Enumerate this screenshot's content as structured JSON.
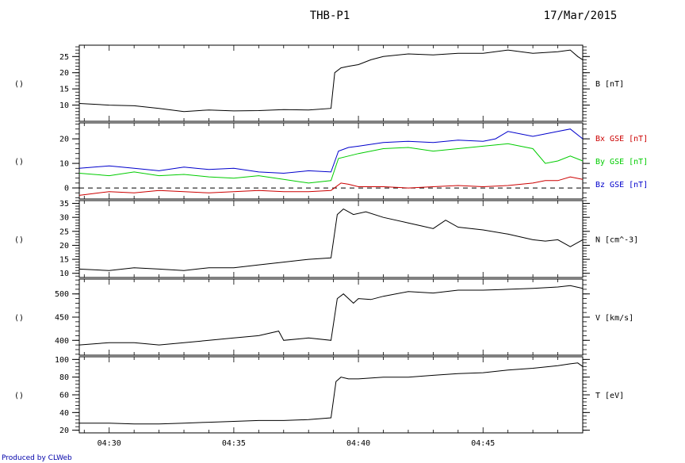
{
  "header": {
    "title": "THB-P1",
    "date": "17/Mar/2015"
  },
  "footer": {
    "credit": "Produced by CLWeb"
  },
  "colors": {
    "bx": "#cc0000",
    "by": "#00cc00",
    "bz": "#0000cc",
    "black": "#000000"
  },
  "chart_data": {
    "type": "line",
    "x_ticks": [
      "04:30",
      "04:35",
      "04:40",
      "04:45"
    ],
    "x_tick_minutes": [
      30,
      35,
      40,
      45
    ],
    "x_range_minutes": [
      28.8,
      49.0
    ],
    "panels": [
      {
        "id": "b",
        "left_label": "()",
        "ylim": [
          5,
          28.5
        ],
        "yticks": [
          10,
          15,
          20,
          25
        ],
        "series": [
          {
            "name": "B [nT]",
            "color": "#000000",
            "x": [
              28.8,
              30.0,
              31.0,
              32.0,
              33.0,
              34.0,
              35.0,
              36.0,
              37.0,
              38.0,
              38.9,
              39.05,
              39.3,
              39.6,
              40.0,
              40.5,
              41.0,
              42.0,
              43.0,
              44.0,
              45.0,
              46.0,
              47.0,
              48.0,
              48.5,
              48.8,
              49.0
            ],
            "values": [
              10.5,
              10.0,
              9.8,
              9.0,
              8.0,
              8.5,
              8.2,
              8.3,
              8.6,
              8.5,
              9.0,
              20.0,
              21.5,
              22.0,
              22.5,
              24.0,
              25.0,
              25.8,
              25.5,
              26.0,
              26.0,
              27.0,
              26.0,
              26.5,
              27.0,
              25.0,
              24.0
            ]
          }
        ]
      },
      {
        "id": "bgse",
        "left_label": "()",
        "ylim": [
          -4.5,
          26.5
        ],
        "yticks": [
          0,
          10,
          20
        ],
        "dashed_zero": true,
        "series": [
          {
            "name": "Bx GSE [nT]",
            "color": "#cc0000",
            "x": [
              28.8,
              30.0,
              31.0,
              32.0,
              33.0,
              34.0,
              35.0,
              36.0,
              37.0,
              38.0,
              38.9,
              39.3,
              39.6,
              40.0,
              41.0,
              42.0,
              43.0,
              44.0,
              45.0,
              46.0,
              47.0,
              47.5,
              48.0,
              48.5,
              49.0
            ],
            "values": [
              -3.0,
              -1.5,
              -2.0,
              -1.0,
              -1.5,
              -2.0,
              -1.5,
              -1.0,
              -1.5,
              -1.5,
              -1.0,
              2.0,
              1.5,
              0.5,
              0.5,
              0.0,
              0.5,
              1.0,
              0.5,
              1.0,
              2.0,
              3.0,
              3.0,
              4.5,
              3.5
            ]
          },
          {
            "name": "By GSE [nT]",
            "color": "#00cc00",
            "x": [
              28.8,
              30.0,
              31.0,
              32.0,
              33.0,
              34.0,
              35.0,
              36.0,
              37.0,
              38.0,
              38.9,
              39.2,
              39.6,
              40.0,
              41.0,
              42.0,
              43.0,
              44.0,
              45.0,
              46.0,
              46.5,
              47.0,
              47.5,
              48.0,
              48.5,
              49.0
            ],
            "values": [
              6.0,
              5.0,
              6.5,
              5.0,
              5.5,
              4.5,
              4.0,
              5.0,
              3.5,
              2.0,
              3.0,
              12.0,
              13.0,
              14.0,
              16.0,
              16.5,
              15.0,
              16.0,
              17.0,
              18.0,
              17.0,
              16.0,
              10.0,
              11.0,
              13.0,
              11.0
            ]
          },
          {
            "name": "Bz GSE [nT]",
            "color": "#0000cc",
            "x": [
              28.8,
              30.0,
              31.0,
              32.0,
              33.0,
              34.0,
              35.0,
              36.0,
              37.0,
              38.0,
              38.9,
              39.2,
              39.6,
              40.0,
              41.0,
              42.0,
              43.0,
              44.0,
              45.0,
              45.5,
              46.0,
              47.0,
              48.0,
              48.5,
              49.0
            ],
            "values": [
              8.0,
              9.0,
              8.0,
              7.0,
              8.5,
              7.5,
              8.0,
              6.5,
              6.0,
              7.0,
              6.5,
              15.0,
              16.5,
              17.0,
              18.5,
              19.0,
              18.5,
              19.5,
              19.0,
              20.0,
              23.0,
              21.0,
              23.0,
              24.0,
              20.0
            ]
          }
        ]
      },
      {
        "id": "n",
        "left_label": "()",
        "ylim": [
          8.5,
          36
        ],
        "yticks": [
          10,
          15,
          20,
          25,
          30,
          35
        ],
        "series": [
          {
            "name": "N [cm^-3]",
            "color": "#000000",
            "x": [
              28.8,
              30.0,
              31.0,
              32.0,
              33.0,
              34.0,
              35.0,
              36.0,
              37.0,
              38.0,
              38.9,
              39.15,
              39.4,
              39.8,
              40.3,
              41.0,
              42.0,
              42.5,
              43.0,
              43.5,
              44.0,
              45.0,
              46.0,
              47.0,
              47.5,
              48.0,
              48.5,
              49.0
            ],
            "values": [
              11.5,
              11.0,
              12.0,
              11.5,
              11.0,
              12.0,
              12.0,
              13.0,
              14.0,
              15.0,
              15.5,
              31.0,
              33.0,
              31.0,
              32.0,
              30.0,
              28.0,
              27.0,
              26.0,
              29.0,
              26.5,
              25.5,
              24.0,
              22.0,
              21.5,
              22.0,
              19.5,
              22.0
            ]
          }
        ]
      },
      {
        "id": "v",
        "left_label": "()",
        "ylim": [
          368,
          532
        ],
        "yticks": [
          400,
          450,
          500
        ],
        "series": [
          {
            "name": "V [km/s]",
            "color": "#000000",
            "x": [
              28.8,
              30.0,
              31.0,
              32.0,
              33.0,
              34.0,
              35.0,
              36.0,
              36.8,
              37.0,
              38.0,
              38.9,
              39.15,
              39.4,
              39.8,
              40.0,
              40.5,
              41.0,
              42.0,
              43.0,
              44.0,
              45.0,
              46.0,
              47.0,
              48.0,
              48.5,
              49.0
            ],
            "values": [
              390,
              395,
              395,
              390,
              395,
              400,
              405,
              410,
              420,
              400,
              405,
              400,
              490,
              500,
              480,
              490,
              488,
              495,
              505,
              502,
              508,
              508,
              510,
              512,
              515,
              518,
              512
            ]
          }
        ]
      },
      {
        "id": "t",
        "left_label": "()",
        "ylim": [
          17,
          103
        ],
        "yticks": [
          20,
          40,
          60,
          80,
          100
        ],
        "series": [
          {
            "name": "T [eV]",
            "color": "#000000",
            "x": [
              28.8,
              30.0,
              31.0,
              32.0,
              33.0,
              34.0,
              35.0,
              36.0,
              37.0,
              38.0,
              38.9,
              39.1,
              39.3,
              39.6,
              40.0,
              41.0,
              42.0,
              43.0,
              44.0,
              45.0,
              46.0,
              47.0,
              48.0,
              48.5,
              48.8,
              49.0
            ],
            "values": [
              28,
              28,
              27,
              27,
              28,
              29,
              30,
              31,
              31,
              32,
              34,
              75,
              80,
              78,
              78,
              80,
              80,
              82,
              84,
              85,
              88,
              90,
              93,
              95,
              96,
              92
            ]
          }
        ]
      }
    ],
    "right_labels": [
      {
        "panel": "b",
        "lines": [
          {
            "text": "B [nT]",
            "color": "#000000"
          }
        ]
      },
      {
        "panel": "bgse",
        "lines": [
          {
            "text": "Bx GSE [nT]",
            "color": "#cc0000"
          },
          {
            "text": "By GSE [nT]",
            "color": "#00cc00"
          },
          {
            "text": "Bz GSE [nT]",
            "color": "#0000cc"
          }
        ]
      },
      {
        "panel": "n",
        "lines": [
          {
            "text": "N [cm^-3]",
            "color": "#000000"
          }
        ]
      },
      {
        "panel": "v",
        "lines": [
          {
            "text": "V [km/s]",
            "color": "#000000"
          }
        ]
      },
      {
        "panel": "t",
        "lines": [
          {
            "text": "T [eV]",
            "color": "#000000"
          }
        ]
      }
    ]
  }
}
